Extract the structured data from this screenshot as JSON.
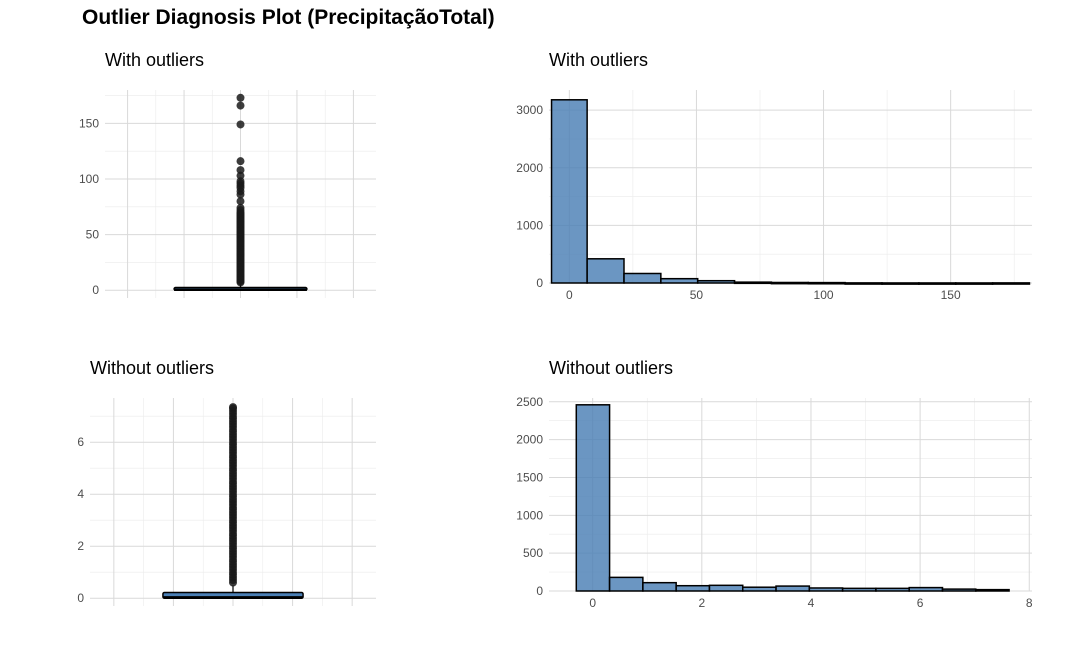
{
  "title": "Outlier Diagnosis Plot (PrecipitaçãoTotal)",
  "colors": {
    "fill": "#4a7fb5",
    "stroke": "#000000",
    "outlier": "#1a1a1a",
    "grid_major": "#d9d9d9",
    "grid_minor": "#ebebeb"
  },
  "chart_data": [
    {
      "id": "box-with",
      "type": "boxplot",
      "title": "With outliers",
      "ylim": [
        -7,
        180
      ],
      "yticks": [
        0,
        50,
        100,
        150
      ],
      "box": {
        "q1": 0,
        "median": 0.4,
        "q3": 2.4,
        "whisker_low": 0,
        "whisker_high": 6.0
      },
      "outliers": [
        7,
        8,
        9,
        10,
        11,
        12,
        13,
        14,
        15,
        16,
        17,
        18,
        19,
        20,
        21,
        22,
        23,
        24,
        25,
        26,
        27,
        28,
        29,
        30,
        31,
        32,
        33,
        34,
        35,
        36,
        37,
        38,
        39,
        40,
        41,
        42,
        43,
        44,
        45,
        46,
        47,
        48,
        49,
        50,
        51,
        52,
        53,
        54,
        55,
        56,
        57,
        58,
        59,
        60,
        61,
        62,
        63,
        64,
        65,
        66,
        67,
        68,
        69,
        70,
        72,
        74,
        80,
        86,
        89,
        92,
        94,
        96,
        98,
        103,
        108,
        116,
        149,
        166,
        173
      ]
    },
    {
      "id": "hist-with",
      "type": "histogram",
      "title": "With outliers",
      "xlim": [
        -8,
        182
      ],
      "ylim": [
        0,
        3350
      ],
      "xticks": [
        0,
        50,
        100,
        150
      ],
      "yticks": [
        0,
        1000,
        2000,
        3000
      ],
      "bins": [
        {
          "x0": -7,
          "x1": 7,
          "count": 3180
        },
        {
          "x0": 7,
          "x1": 21.5,
          "count": 420
        },
        {
          "x0": 21.5,
          "x1": 36,
          "count": 165
        },
        {
          "x0": 36,
          "x1": 50.5,
          "count": 75
        },
        {
          "x0": 50.5,
          "x1": 65,
          "count": 40
        },
        {
          "x0": 65,
          "x1": 79.5,
          "count": 15
        },
        {
          "x0": 79.5,
          "x1": 94,
          "count": 9
        },
        {
          "x0": 94,
          "x1": 108.5,
          "count": 7
        },
        {
          "x0": 108.5,
          "x1": 123,
          "count": 2
        },
        {
          "x0": 123,
          "x1": 137.5,
          "count": 1
        },
        {
          "x0": 137.5,
          "x1": 152,
          "count": 1
        },
        {
          "x0": 152,
          "x1": 166.5,
          "count": 1
        },
        {
          "x0": 166.5,
          "x1": 181,
          "count": 2
        }
      ]
    },
    {
      "id": "box-without",
      "type": "boxplot",
      "title": "Without outliers",
      "ylim": [
        -0.3,
        7.7
      ],
      "yticks": [
        0,
        2,
        4,
        6
      ],
      "box": {
        "q1": 0,
        "median": 0.03,
        "q3": 0.22,
        "whisker_low": 0,
        "whisker_high": 0.5
      },
      "outliers": [
        0.6,
        0.7,
        0.8,
        0.9,
        1.0,
        1.1,
        1.2,
        1.3,
        1.4,
        1.5,
        1.6,
        1.7,
        1.8,
        1.9,
        2.0,
        2.1,
        2.2,
        2.3,
        2.4,
        2.5,
        2.6,
        2.7,
        2.8,
        2.9,
        3.0,
        3.1,
        3.2,
        3.3,
        3.4,
        3.5,
        3.6,
        3.7,
        3.8,
        3.9,
        4.0,
        4.1,
        4.2,
        4.3,
        4.4,
        4.5,
        4.6,
        4.7,
        4.8,
        4.9,
        5.0,
        5.1,
        5.2,
        5.3,
        5.4,
        5.5,
        5.6,
        5.7,
        5.8,
        5.9,
        6.0,
        6.1,
        6.2,
        6.3,
        6.4,
        6.5,
        6.6,
        6.7,
        6.8,
        6.9,
        7.0,
        7.1,
        7.2,
        7.3,
        7.35
      ]
    },
    {
      "id": "hist-without",
      "type": "histogram",
      "title": "Without outliers",
      "xlim": [
        -0.8,
        8.05
      ],
      "ylim": [
        0,
        2550
      ],
      "xticks": [
        0,
        2,
        4,
        6,
        8
      ],
      "yticks": [
        0,
        500,
        1000,
        1500,
        2000,
        2500
      ],
      "bins": [
        {
          "x0": -0.3,
          "x1": 0.31,
          "count": 2460
        },
        {
          "x0": 0.31,
          "x1": 0.92,
          "count": 180
        },
        {
          "x0": 0.92,
          "x1": 1.53,
          "count": 110
        },
        {
          "x0": 1.53,
          "x1": 2.14,
          "count": 70
        },
        {
          "x0": 2.14,
          "x1": 2.75,
          "count": 75
        },
        {
          "x0": 2.75,
          "x1": 3.36,
          "count": 50
        },
        {
          "x0": 3.36,
          "x1": 3.97,
          "count": 65
        },
        {
          "x0": 3.97,
          "x1": 4.58,
          "count": 40
        },
        {
          "x0": 4.58,
          "x1": 5.19,
          "count": 35
        },
        {
          "x0": 5.19,
          "x1": 5.8,
          "count": 35
        },
        {
          "x0": 5.8,
          "x1": 6.41,
          "count": 45
        },
        {
          "x0": 6.41,
          "x1": 7.02,
          "count": 25
        },
        {
          "x0": 7.02,
          "x1": 7.63,
          "count": 18
        }
      ]
    }
  ]
}
